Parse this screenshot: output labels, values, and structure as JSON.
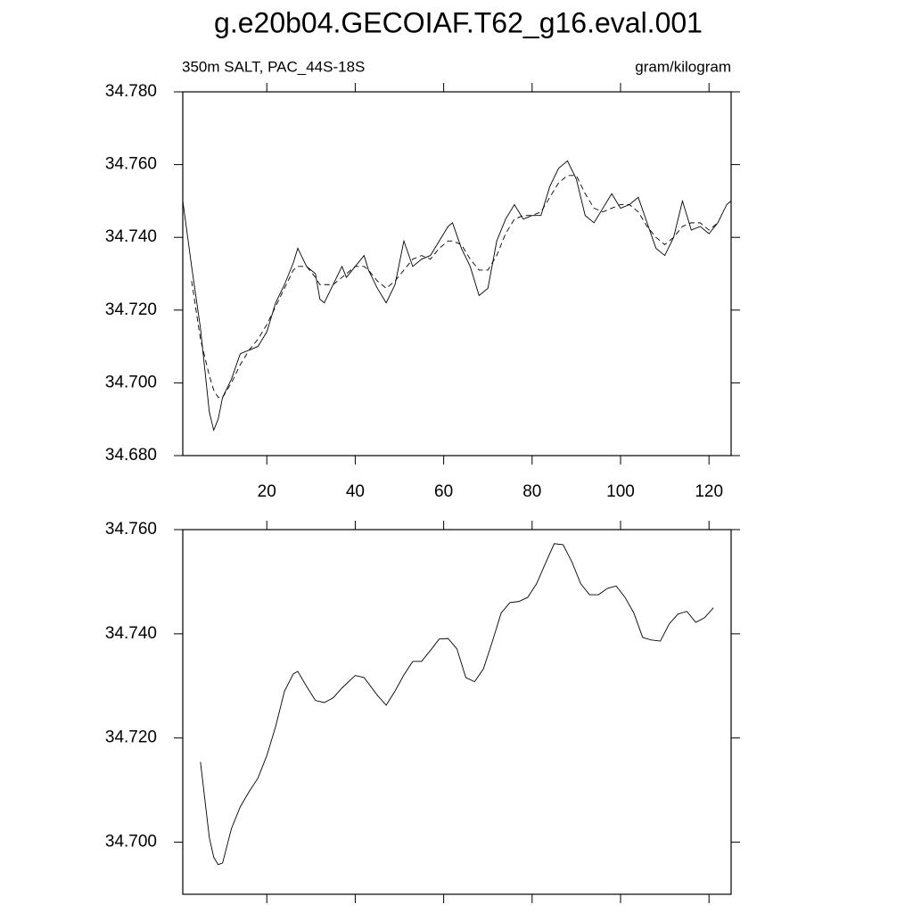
{
  "chart_data": [
    {
      "type": "line",
      "title": "g.e20b04.GECOIAF.T62_g16.eval.001",
      "subtitle": "350m SALT, PAC_44S-18S",
      "units": "gram/kilogram",
      "x": [
        1,
        3,
        5,
        7,
        8,
        9,
        10,
        12,
        14,
        16,
        18,
        20,
        22,
        24,
        26,
        27,
        29,
        31,
        32,
        33,
        35,
        37,
        38,
        40,
        42,
        43,
        45,
        47,
        49,
        51,
        53,
        55,
        57,
        59,
        61,
        62,
        64,
        66,
        68,
        70,
        72,
        74,
        76,
        78,
        80,
        82,
        84,
        86,
        88,
        90,
        92,
        94,
        96,
        98,
        100,
        102,
        104,
        106,
        108,
        110,
        112,
        114,
        116,
        118,
        120,
        122,
        124,
        125
      ],
      "series": [
        {
          "color": "#000000",
          "dashed": false,
          "values": [
            34.75,
            34.732,
            34.715,
            34.692,
            34.687,
            34.69,
            34.696,
            34.701,
            34.708,
            34.709,
            34.71,
            34.714,
            34.722,
            34.727,
            34.733,
            34.737,
            34.732,
            34.73,
            34.723,
            34.722,
            34.727,
            34.732,
            34.729,
            34.732,
            34.735,
            34.731,
            34.726,
            34.722,
            34.727,
            34.739,
            34.732,
            34.734,
            34.735,
            34.739,
            34.743,
            34.744,
            34.737,
            34.732,
            34.724,
            34.726,
            34.739,
            34.745,
            34.749,
            34.745,
            34.746,
            34.746,
            34.754,
            34.759,
            34.761,
            34.756,
            34.746,
            34.744,
            34.748,
            34.752,
            34.748,
            34.749,
            34.751,
            34.744,
            34.737,
            34.735,
            34.74,
            34.75,
            34.742,
            34.743,
            34.741,
            34.744,
            34.749,
            34.75
          ]
        },
        {
          "color": "#000000",
          "dashed": true,
          "values": [
            null,
            34.728,
            34.712,
            34.702,
            34.698,
            34.696,
            34.696,
            34.7,
            34.705,
            34.709,
            34.712,
            34.716,
            34.721,
            34.726,
            34.731,
            34.732,
            34.732,
            34.729,
            34.727,
            34.727,
            34.727,
            34.729,
            34.73,
            34.732,
            34.732,
            34.731,
            34.728,
            34.726,
            34.728,
            34.731,
            34.734,
            34.735,
            34.734,
            34.737,
            34.739,
            34.739,
            34.738,
            34.734,
            34.731,
            34.731,
            34.735,
            34.741,
            34.745,
            34.746,
            34.746,
            34.747,
            34.751,
            34.755,
            34.757,
            34.757,
            34.752,
            34.748,
            34.747,
            34.748,
            34.749,
            34.749,
            34.747,
            34.743,
            34.74,
            34.738,
            34.74,
            34.743,
            34.744,
            34.744,
            34.742,
            34.744,
            null,
            null
          ]
        }
      ],
      "xlim": [
        1,
        125
      ],
      "ylim": [
        34.68,
        34.78
      ],
      "xticks": [
        20,
        40,
        60,
        80,
        100,
        120
      ],
      "yticks": [
        {
          "value": 34.68,
          "label": "34.680"
        },
        {
          "value": 34.7,
          "label": "34.700"
        },
        {
          "value": 34.72,
          "label": "34.720"
        },
        {
          "value": 34.74,
          "label": "34.740"
        },
        {
          "value": 34.76,
          "label": "34.760"
        },
        {
          "value": 34.78,
          "label": "34.780"
        }
      ]
    },
    {
      "type": "line",
      "x": [
        5,
        7,
        8,
        9,
        10,
        12,
        14,
        16,
        18,
        20,
        22,
        24,
        26,
        27,
        29,
        31,
        33,
        35,
        37,
        40,
        42,
        45,
        47,
        49,
        51,
        53,
        55,
        57,
        59,
        61,
        63,
        65,
        67,
        69,
        71,
        73,
        75,
        77,
        79,
        81,
        83,
        85,
        87,
        89,
        91,
        93,
        95,
        97,
        99,
        101,
        103,
        105,
        107,
        109,
        111,
        113,
        115,
        117,
        119,
        121
      ],
      "series": [
        {
          "color": "#000000",
          "dashed": false,
          "values": [
            34.7154,
            34.7009,
            34.6971,
            34.6957,
            34.696,
            34.7026,
            34.7068,
            34.7097,
            34.7123,
            34.7166,
            34.7222,
            34.729,
            34.7323,
            34.7328,
            34.7299,
            34.7272,
            34.7268,
            34.7277,
            34.7296,
            34.732,
            34.7316,
            34.7282,
            34.7263,
            34.729,
            34.7321,
            34.7347,
            34.7347,
            34.7368,
            34.739,
            34.7391,
            34.7371,
            34.7316,
            34.7308,
            34.7333,
            34.7385,
            34.744,
            34.746,
            34.7462,
            34.747,
            34.7496,
            34.7535,
            34.7573,
            34.7571,
            34.7538,
            34.7496,
            34.7475,
            34.7475,
            34.7487,
            34.7492,
            34.747,
            34.744,
            34.7393,
            34.7388,
            34.7386,
            34.7419,
            34.7438,
            34.7443,
            34.7422,
            34.7431,
            34.745
          ]
        }
      ],
      "xlim": [
        1,
        125
      ],
      "ylim": [
        34.69,
        34.76
      ],
      "xticks": [
        20,
        40,
        60,
        80,
        100,
        120
      ],
      "yticks": [
        {
          "value": 34.7,
          "label": "34.700"
        },
        {
          "value": 34.72,
          "label": "34.720"
        },
        {
          "value": 34.74,
          "label": "34.740"
        },
        {
          "value": 34.76,
          "label": "34.760"
        }
      ]
    }
  ]
}
